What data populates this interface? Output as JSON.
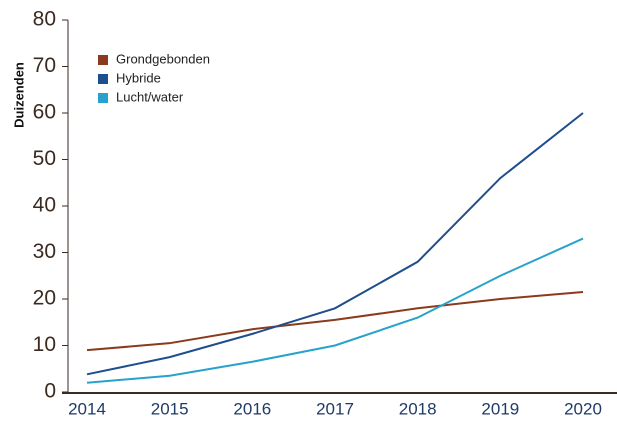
{
  "chart_data": {
    "type": "line",
    "y_label": "Duizenden",
    "categories": [
      "2014",
      "2015",
      "2016",
      "2017",
      "2018",
      "2019",
      "2020"
    ],
    "series": [
      {
        "name": "Grondgebonden",
        "color": "#8b3a1e",
        "values": [
          9,
          10.5,
          13.5,
          15.5,
          18,
          20,
          21.5
        ]
      },
      {
        "name": "Hybride",
        "color": "#1f4e8c",
        "values": [
          3.8,
          7.5,
          12.5,
          18,
          28,
          46,
          60
        ]
      },
      {
        "name": "Lucht/water",
        "color": "#27a2cc",
        "values": [
          2,
          3.5,
          6.5,
          10,
          16,
          25,
          33
        ]
      }
    ],
    "ylim": [
      0,
      80
    ],
    "yticks": [
      0,
      10,
      20,
      30,
      40,
      50,
      60,
      70,
      80
    ],
    "legend": "upper-left",
    "grid": false
  }
}
